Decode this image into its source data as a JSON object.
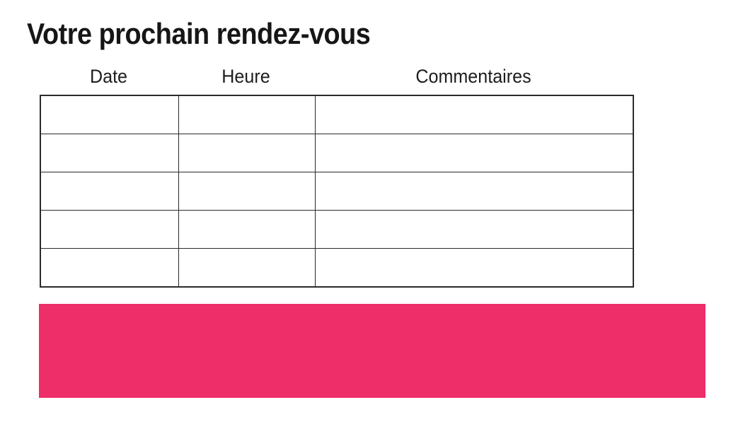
{
  "page": {
    "title": "Votre prochain rendez-vous"
  },
  "appointments": {
    "columns": [
      "Date",
      "Heure",
      "Commentaires"
    ],
    "rows": [
      [
        "",
        "",
        ""
      ],
      [
        "",
        "",
        ""
      ],
      [
        "",
        "",
        ""
      ],
      [
        "",
        "",
        ""
      ],
      [
        "",
        "",
        ""
      ]
    ]
  },
  "banner": {
    "text": ""
  },
  "colors": {
    "title_text": "#161616",
    "header_text": "#1d1d1d",
    "table_border": "#2a2a2a",
    "banner_pink": "#ed2e68"
  }
}
